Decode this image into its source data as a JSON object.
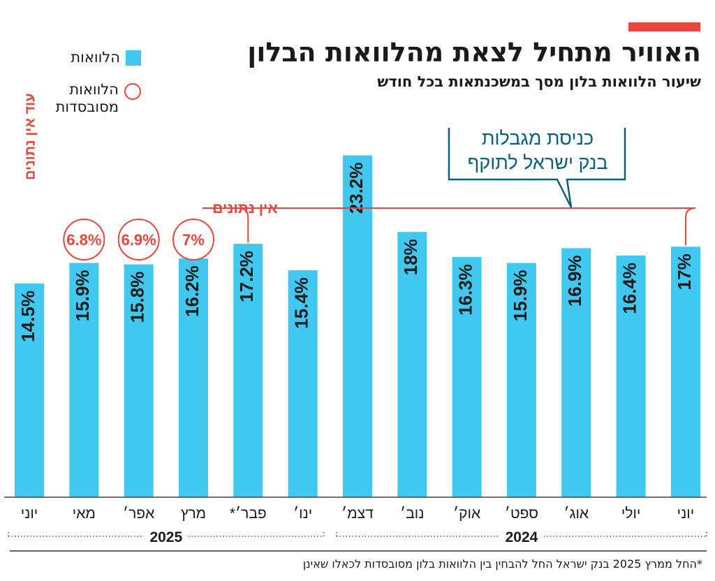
{
  "title": "האוויר מתחיל לצאת מהלוואות הבלון",
  "subtitle": "שיעור הלוואות בלון מסך במשכנתאות בכל חודש",
  "legend": {
    "bars": "הלוואות",
    "circles_line1": "הלוואות",
    "circles_line2": "מסובסדות"
  },
  "annotations": {
    "no_data": "אין נתונים",
    "still_no_data": "עוד אין נתונים",
    "callout_line1": "כניסת מגבלות",
    "callout_line2": "בנק ישראל לתוקף"
  },
  "footnote": "*החל ממרץ 2025 בנק ישראל החל להבחין בין הלוואות בלון מסובסדות לכאלו שאינן",
  "colors": {
    "bar": "#40c8f0",
    "accent": "#e8463c",
    "callout": "#0b5e7c",
    "text": "#1a1a1a"
  },
  "chart_data": {
    "type": "bar",
    "categories": [
      "יוני",
      "יולי",
      "אוג׳",
      "ספט׳",
      "אוק׳",
      "נוב׳",
      "דצמ׳",
      "ינו׳",
      "פבר׳*",
      "מרץ",
      "אפר׳",
      "מאי",
      "יוני"
    ],
    "values": [
      17,
      16.4,
      16.9,
      15.9,
      16.3,
      18,
      23.2,
      15.4,
      17.2,
      16.2,
      15.8,
      15.9,
      14.5
    ],
    "value_labels": [
      "17%",
      "16.4%",
      "16.9%",
      "15.9%",
      "16.3%",
      "18%",
      "23.2%",
      "15.4%",
      "17.2%",
      "16.2%",
      "15.8%",
      "15.9%",
      "14.5%"
    ],
    "series": [
      {
        "values": [
          17,
          16.4,
          16.9,
          15.9,
          16.3,
          18,
          23.2,
          15.4,
          17.2,
          16.2,
          15.8,
          15.9,
          14.5
        ]
      }
    ],
    "subsidized": [
      {
        "category_index": 9,
        "value": 7,
        "label": "7%"
      },
      {
        "category_index": 10,
        "value": 6.9,
        "label": "6.9%"
      },
      {
        "category_index": 11,
        "value": 6.8,
        "label": "6.8%"
      }
    ],
    "year_groups": [
      {
        "label": "2024",
        "from": 0,
        "to": 6
      },
      {
        "label": "2025",
        "from": 7,
        "to": 12
      }
    ],
    "ylim": [
      0,
      25
    ],
    "grid": false,
    "legend_position": "top-left"
  }
}
